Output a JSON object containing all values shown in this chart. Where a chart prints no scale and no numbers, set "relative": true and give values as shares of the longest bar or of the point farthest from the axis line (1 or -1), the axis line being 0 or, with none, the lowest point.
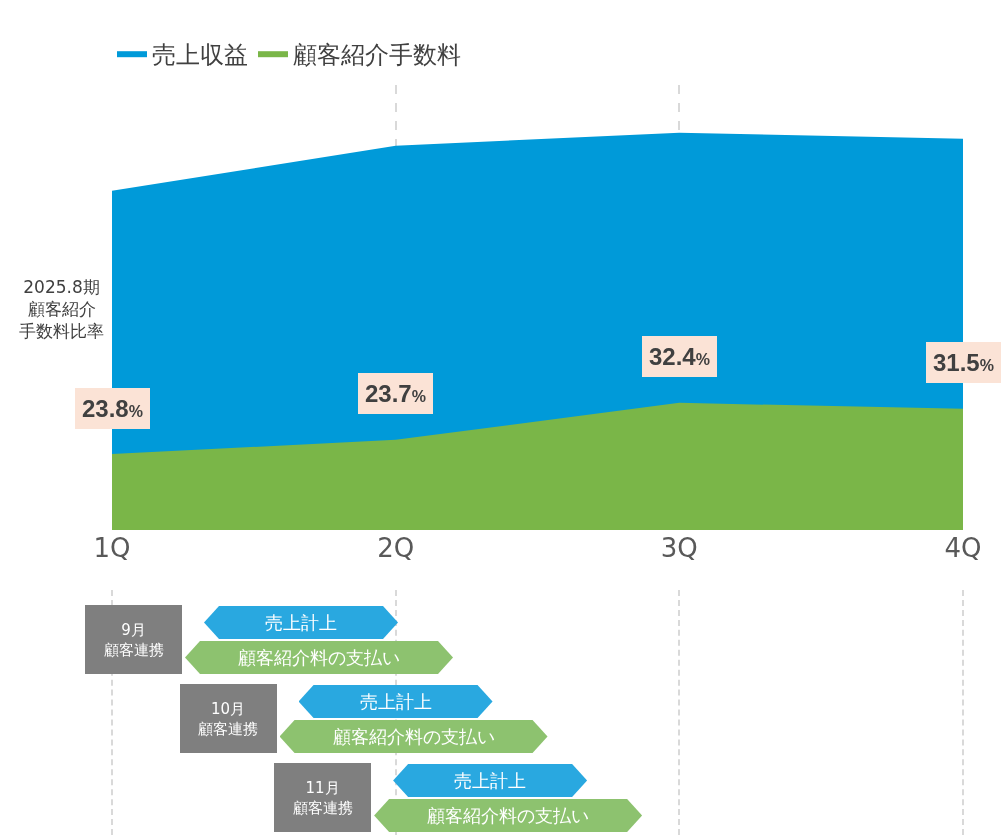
{
  "chart_data": {
    "type": "area",
    "relative": true,
    "categories": [
      "1Q",
      "2Q",
      "3Q",
      "4Q"
    ],
    "series": [
      {
        "name": "売上収益",
        "color": "#009ad9",
        "values": [
          0.854,
          0.967,
          1,
          0.985
        ]
      },
      {
        "name": "顧客紹介手数料",
        "color": "#7ab648",
        "values": [
          0.191,
          0.227,
          0.32,
          0.305
        ]
      }
    ],
    "grid": "x",
    "legend": "top left",
    "annotations": [
      "2025.8期",
      "顧客紹介",
      "手数料比率",
      {
        "text": "23.8%",
        "x": "1Q",
        "y": 0.191
      },
      {
        "text": "23.7%",
        "x": "2Q",
        "y": 0.227
      },
      {
        "text": "32.4%",
        "x": "3Q",
        "y": 0.32
      },
      {
        "text": "31.5%",
        "x": "4Q",
        "y": 0.305
      },
      "9月",
      "顧客連携",
      "売上計上",
      "顧客紹介料の支払い",
      "10月",
      "顧客連携",
      "売上計上",
      "顧客紹介料の支払い",
      "11月",
      "顧客連携",
      "売上計上",
      "顧客紹介料の支払い"
    ]
  }
}
